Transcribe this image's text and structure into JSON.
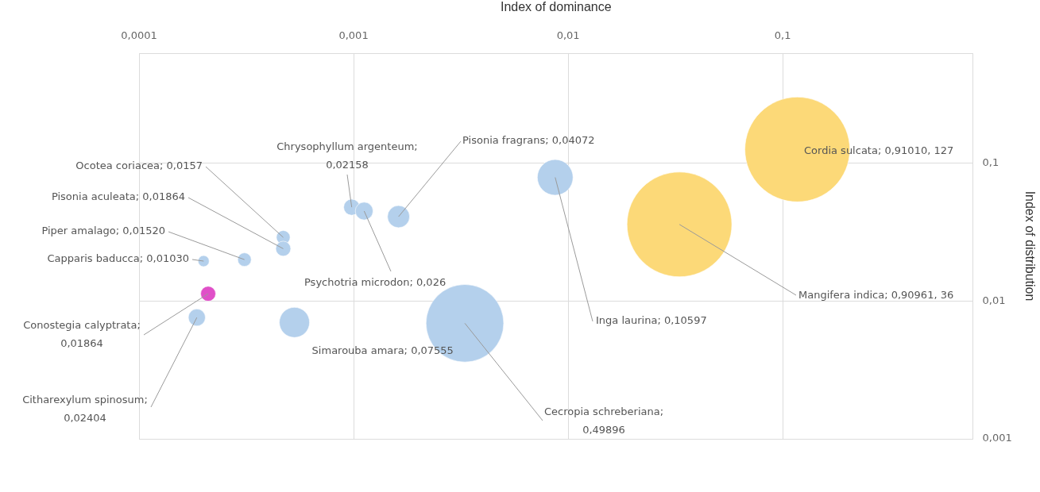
{
  "chart_data": {
    "type": "bubble",
    "xlabel": "Index of dominance",
    "ylabel": "Index of distribution",
    "log": "xy",
    "grid": true,
    "legend": false,
    "xlim": [
      0.0001,
      0.77
    ],
    "ylim": [
      0.001,
      0.63
    ],
    "xticks": [
      {
        "value": 0.0001,
        "label": "0,0001"
      },
      {
        "value": 0.001,
        "label": "0,001"
      },
      {
        "value": 0.01,
        "label": "0,01"
      },
      {
        "value": 0.1,
        "label": "0,1"
      }
    ],
    "yticks": [
      {
        "value": 0.001,
        "label": "0,001"
      },
      {
        "value": 0.01,
        "label": "0,01"
      },
      {
        "value": 0.1,
        "label": "0,1"
      }
    ],
    "series": [
      {
        "x": [
          0.00047,
          0.00047,
          0.00031,
          0.0002,
          0.00021,
          0.000186,
          0.00053,
          0.0033,
          0.00098,
          0.00112,
          0.00162,
          0.0087,
          0.033,
          0.117
        ],
        "values": [
          0.029,
          0.024,
          0.02,
          0.0195,
          0.0113,
          0.0076,
          0.007,
          0.0069,
          0.048,
          0.045,
          0.041,
          0.079,
          0.036,
          0.126
        ],
        "sizes": [
          0.0173,
          0.0205,
          0.0167,
          0.0113,
          0.0205,
          0.0264,
          0.083,
          0.548,
          0.0237,
          0.0286,
          0.0447,
          0.116,
          0.999,
          1
        ],
        "colors": [
          "#b4d0ec",
          "#b4d0ec",
          "#b4d0ec",
          "#b4d0ec",
          "#e050c8",
          "#b4d0ec",
          "#b4d0ec",
          "#b4d0ec",
          "#b4d0ec",
          "#b4d0ec",
          "#b4d0ec",
          "#b4d0ec",
          "#fcd978",
          "#fcd978"
        ]
      }
    ],
    "annotations": [
      {
        "text": "Ocotea coriacea; 0,0157",
        "x": 0.00047,
        "y": 0.029
      },
      {
        "text": "Pisonia aculeata; 0,01864",
        "x": 0.00047,
        "y": 0.024
      },
      {
        "text": "Piper amalago; 0,01520",
        "x": 0.00031,
        "y": 0.02
      },
      {
        "text": "Capparis baducca; 0,01030",
        "x": 0.0002,
        "y": 0.0195
      },
      {
        "text": "Conostegia calyptrata;\n0,01864",
        "x": 0.00021,
        "y": 0.0113
      },
      {
        "text": "Citharexylum spinosum;\n0,02404",
        "x": 0.000186,
        "y": 0.0076
      },
      {
        "text": "Simarouba amara; 0,07555",
        "x": 0.00053,
        "y": 0.007
      },
      {
        "text": "Cecropia schreberiana;\n0,49896",
        "x": 0.0033,
        "y": 0.0069
      },
      {
        "text": "Chrysophyllum argenteum;\n0,02158",
        "x": 0.00098,
        "y": 0.048
      },
      {
        "text": "Psychotria microdon; 0,026",
        "x": 0.00112,
        "y": 0.045
      },
      {
        "text": "Pisonia fragrans; 0,04072",
        "x": 0.00162,
        "y": 0.041
      },
      {
        "text": "Inga laurina; 0,10597",
        "x": 0.0087,
        "y": 0.079
      },
      {
        "text": "Mangifera indica; 0,90961, 36",
        "x": 0.033,
        "y": 0.036
      },
      {
        "text": "Cordia sulcata; 0,91010, 127",
        "x": 0.117,
        "y": 0.126
      }
    ]
  }
}
